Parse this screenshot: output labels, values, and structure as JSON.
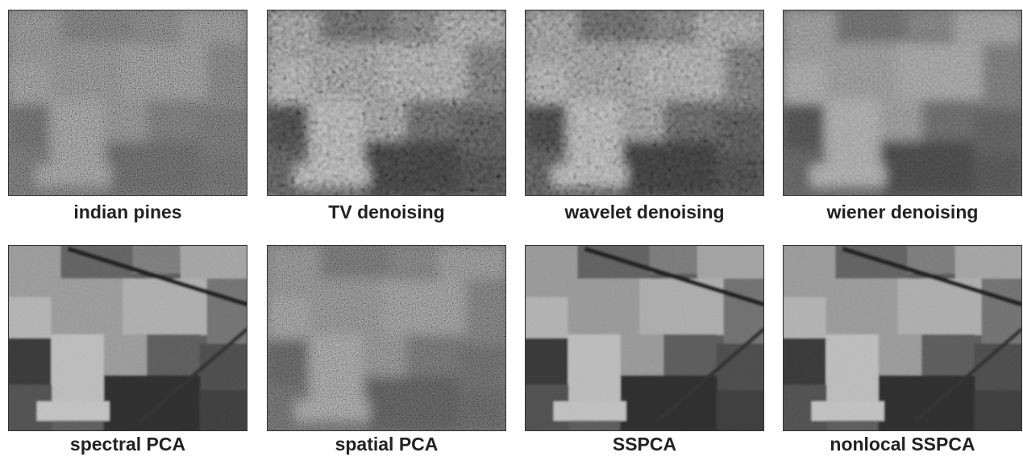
{
  "panels": [
    {
      "caption": "indian pines"
    },
    {
      "caption": "TV denoising"
    },
    {
      "caption": "wavelet denoising"
    },
    {
      "caption": "wiener denoising"
    },
    {
      "caption": "spectral PCA"
    },
    {
      "caption": "spatial PCA"
    },
    {
      "caption": "SSPCA"
    },
    {
      "caption": "nonlocal SSPCA"
    }
  ]
}
